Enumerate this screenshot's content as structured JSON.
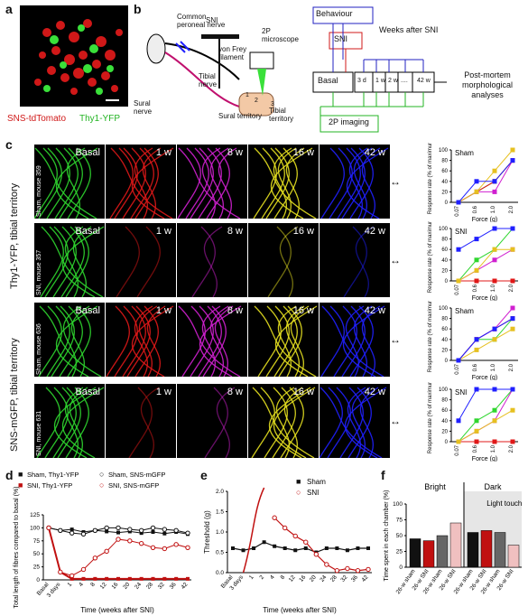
{
  "panel_labels": [
    "a",
    "b",
    "c",
    "d",
    "e",
    "f"
  ],
  "panel_a": {
    "legend_red": "SNS-tdTomato",
    "legend_green": "Thy1-YFP"
  },
  "panel_b": {
    "labels": {
      "common_peroneal": "Common peroneal nerve",
      "sni": "SNI",
      "von_frey": "von Frey filament",
      "microscope": "2P microscope",
      "tibial_nerve": "Tibial nerve",
      "sural_nerve": "Sural nerve",
      "sural_territory": "Sural territory",
      "tibial_territory": "Tibial territory",
      "num1": "1",
      "num2": "2",
      "num3": "3"
    },
    "timeline": {
      "behaviour": "Behaviour",
      "sni": "SNI",
      "weeks_after": "Weeks after SNI",
      "basal": "Basal",
      "timepoints": [
        "3 d",
        "1 w",
        "2 w",
        "....",
        "42 w"
      ],
      "imaging": "2P imaging",
      "postmortem": "Post-mortem morphological analyses"
    }
  },
  "panel_c": {
    "row_group_1": "Thy1-YFP, tibial territory",
    "row_group_2": "SNS-mGFP, tibial territory",
    "rows": [
      {
        "side": "Sham, mouse 359",
        "tags": [
          "Basal",
          "1 w",
          "8 w",
          "16 w",
          "42 w"
        ],
        "graph_label": "Sham"
      },
      {
        "side": "SNI, mouse 357",
        "tags": [
          "Basal",
          "1 w",
          "8 w",
          "16 w",
          "42 w"
        ],
        "graph_label": "SNI"
      },
      {
        "side": "Sham, mouse 636",
        "tags": [
          "Basal",
          "1 w",
          "8 w",
          "16 w",
          "42 w"
        ],
        "graph_label": "Sham"
      },
      {
        "side": "SNI, mouse 631",
        "tags": [
          "Basal",
          "1 w",
          "8 w",
          "16 w",
          "42 w"
        ],
        "graph_label": "SNI"
      }
    ],
    "image_colors": [
      "#2fd62f",
      "#e01818",
      "#d020d0",
      "#e6e020",
      "#2020ff"
    ],
    "ylabel": "Response rate (% of maximum)",
    "xlabel": "Force (g)"
  },
  "chart_data": [
    {
      "type": "line",
      "panel": "c-Sham-Thy1",
      "title": "Sham",
      "x": [
        "0.07",
        "0.6",
        "1.0",
        "2.0"
      ],
      "ylim": [
        0,
        100
      ],
      "yticks": [
        0,
        20,
        40,
        60,
        80,
        100
      ],
      "xlabel": "Force (g)",
      "ylabel": "Response rate (% of maximum)",
      "series": [
        {
          "color": "#2fd62f",
          "values": [
            0,
            20,
            40,
            80
          ]
        },
        {
          "color": "#e01818",
          "values": [
            0,
            20,
            40,
            80
          ]
        },
        {
          "color": "#d020d0",
          "values": [
            0,
            20,
            20,
            80
          ]
        },
        {
          "color": "#e6c020",
          "values": [
            0,
            20,
            60,
            100
          ]
        },
        {
          "color": "#2020ff",
          "values": [
            0,
            40,
            40,
            80
          ]
        }
      ]
    },
    {
      "type": "line",
      "panel": "c-SNI-Thy1",
      "title": "SNI",
      "x": [
        "0.07",
        "0.6",
        "1.0",
        "2.0"
      ],
      "ylim": [
        0,
        100
      ],
      "yticks": [
        0,
        20,
        40,
        60,
        80,
        100
      ],
      "xlabel": "Force (g)",
      "ylabel": "Response rate (% of maximum)",
      "series": [
        {
          "color": "#2fd62f",
          "values": [
            0,
            40,
            60,
            100
          ]
        },
        {
          "color": "#e01818",
          "values": [
            0,
            0,
            0,
            0
          ]
        },
        {
          "color": "#d020d0",
          "values": [
            0,
            20,
            40,
            60
          ]
        },
        {
          "color": "#e6c020",
          "values": [
            0,
            20,
            60,
            60
          ]
        },
        {
          "color": "#2020ff",
          "values": [
            60,
            80,
            100,
            100
          ]
        }
      ]
    },
    {
      "type": "line",
      "panel": "c-Sham-SNS",
      "title": "Sham",
      "x": [
        "0.07",
        "0.6",
        "1.0",
        "2.0"
      ],
      "ylim": [
        0,
        100
      ],
      "yticks": [
        0,
        20,
        40,
        60,
        80,
        100
      ],
      "xlabel": "Force (g)",
      "ylabel": "Response rate (% of maximum)",
      "series": [
        {
          "color": "#2fd62f",
          "values": [
            0,
            40,
            40,
            80
          ]
        },
        {
          "color": "#e01818",
          "values": [
            0,
            40,
            60,
            80
          ]
        },
        {
          "color": "#d020d0",
          "values": [
            0,
            40,
            60,
            100
          ]
        },
        {
          "color": "#e6c020",
          "values": [
            0,
            20,
            40,
            60
          ]
        },
        {
          "color": "#2020ff",
          "values": [
            0,
            40,
            60,
            80
          ]
        }
      ]
    },
    {
      "type": "line",
      "panel": "c-SNI-SNS",
      "title": "SNI",
      "x": [
        "0.07",
        "0.6",
        "1.0",
        "2.0"
      ],
      "ylim": [
        0,
        100
      ],
      "yticks": [
        0,
        20,
        40,
        60,
        80,
        100
      ],
      "xlabel": "Force (g)",
      "ylabel": "Response rate (% of maximum)",
      "series": [
        {
          "color": "#2fd62f",
          "values": [
            0,
            40,
            60,
            100
          ]
        },
        {
          "color": "#e01818",
          "values": [
            0,
            0,
            0,
            0
          ]
        },
        {
          "color": "#d020d0",
          "values": [
            0,
            20,
            40,
            100
          ]
        },
        {
          "color": "#e6c020",
          "values": [
            0,
            20,
            40,
            60
          ]
        },
        {
          "color": "#2020ff",
          "values": [
            40,
            100,
            100,
            100
          ]
        }
      ]
    },
    {
      "type": "line",
      "panel": "d",
      "legend": [
        "Sham, Thy1-YFP",
        "Sham, SNS-mGFP",
        "SNI, Thy1-YFP",
        "SNI, SNS-mGFP"
      ],
      "ylabel": "Total length of fibres compared to basal (%)",
      "xlabel": "Time (weeks after SNI)",
      "ylim": [
        0,
        125
      ],
      "yticks": [
        0,
        25,
        50,
        75,
        100,
        125
      ],
      "xticks": [
        "Basal",
        "3 days",
        "1",
        "4",
        "8",
        "12",
        "16",
        "20",
        "24",
        "28",
        "32",
        "36",
        "42"
      ],
      "series": [
        {
          "name": "Sham, Thy1-YFP",
          "values": [
            100,
            95,
            97,
            92,
            95,
            93,
            91,
            93,
            90,
            92,
            89,
            92,
            88
          ]
        },
        {
          "name": "Sham, SNS-mGFP",
          "values": [
            100,
            95,
            90,
            88,
            95,
            100,
            100,
            97,
            95,
            100,
            97,
            95,
            90
          ]
        },
        {
          "name": "SNI, Thy1-YFP",
          "values": [
            100,
            15,
            2,
            2,
            2,
            2,
            2,
            2,
            2,
            2,
            2,
            2,
            2
          ]
        },
        {
          "name": "SNI, SNS-mGFP",
          "values": [
            100,
            15,
            8,
            20,
            42,
            55,
            78,
            75,
            70,
            62,
            60,
            68,
            62
          ]
        }
      ]
    },
    {
      "type": "line",
      "panel": "e",
      "legend": [
        "Sham",
        "SNI"
      ],
      "ylabel": "Threshold (g)",
      "xlabel": "Time (weeks after SNI)",
      "ylim": [
        0,
        2
      ],
      "yticks": [
        0,
        0.5,
        1.0,
        1.5,
        2.0
      ],
      "xticks": [
        "Basal",
        "3 days",
        "1",
        "2",
        "4",
        "8",
        "12",
        "16",
        "20",
        "24",
        "28",
        "32",
        "36",
        "42"
      ],
      "series": [
        {
          "name": "Sham",
          "values": [
            0.6,
            0.55,
            0.6,
            0.75,
            0.65,
            0.6,
            0.55,
            0.6,
            0.5,
            0.6,
            0.6,
            0.55,
            0.6,
            0.6
          ]
        },
        {
          "name": "SNI",
          "values": [
            null,
            null,
            null,
            null,
            1.35,
            1.1,
            0.9,
            0.75,
            0.45,
            0.2,
            0.05,
            0.1,
            0.05,
            0.08
          ]
        }
      ]
    },
    {
      "type": "bar",
      "panel": "f",
      "groups": [
        "Bright",
        "Dark"
      ],
      "inset_label": "Light touch",
      "ylabel": "Time spent in each chamber (%)",
      "ylim": [
        0,
        100
      ],
      "yticks": [
        0,
        25,
        50,
        75,
        100
      ],
      "categories": [
        "26-w sham",
        "26-w SNI",
        "26-w sham",
        "26-w SNI",
        "26-w sham",
        "26-w SNI",
        "26-w sham",
        "26-w SNI"
      ],
      "values": [
        45,
        42,
        50,
        70,
        55,
        58,
        55,
        35
      ]
    }
  ],
  "stats_marks": {
    "star": "*",
    "dagger": "†"
  }
}
